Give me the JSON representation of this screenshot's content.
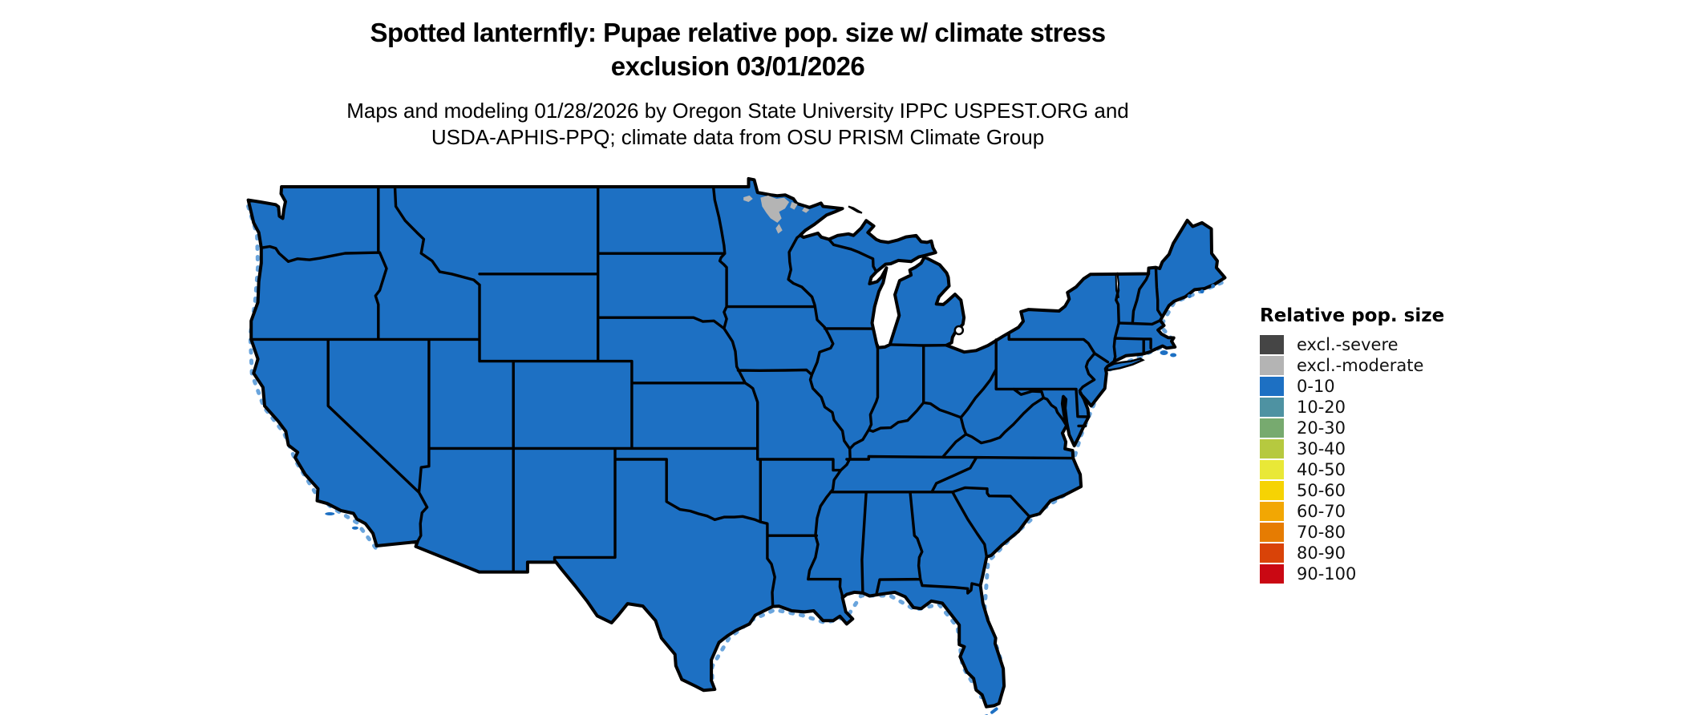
{
  "header": {
    "title_line1": "Spotted lanternfly: Pupae relative pop. size w/ climate stress",
    "title_line2": "exclusion 03/01/2026",
    "subtitle_line1": "Maps and modeling 01/28/2026 by Oregon State University IPPC USPEST.ORG and",
    "subtitle_line2": "USDA-APHIS-PPQ; climate data from OSU PRISM Climate Group"
  },
  "legend": {
    "title": "Relative pop. size",
    "items": [
      {
        "label": "excl.-severe",
        "color": "#454545"
      },
      {
        "label": "excl.-moderate",
        "color": "#b4b4b4"
      },
      {
        "label": "0-10",
        "color": "#1d70c3"
      },
      {
        "label": "10-20",
        "color": "#4e92a2"
      },
      {
        "label": "20-30",
        "color": "#77aa6f"
      },
      {
        "label": "30-40",
        "color": "#b6c93f"
      },
      {
        "label": "40-50",
        "color": "#e9e837"
      },
      {
        "label": "50-60",
        "color": "#f6d303"
      },
      {
        "label": "60-70",
        "color": "#f2a703"
      },
      {
        "label": "70-80",
        "color": "#e67c02"
      },
      {
        "label": "80-90",
        "color": "#d94308"
      },
      {
        "label": "90-100",
        "color": "#ca0813"
      }
    ]
  },
  "map": {
    "land_class_label": "0-10",
    "excluded_patches_class_label": "excl.-moderate",
    "border_color": "#000000",
    "water_background_color": "#ffffff",
    "coastal_speckle_color": "#6aa5dd"
  }
}
